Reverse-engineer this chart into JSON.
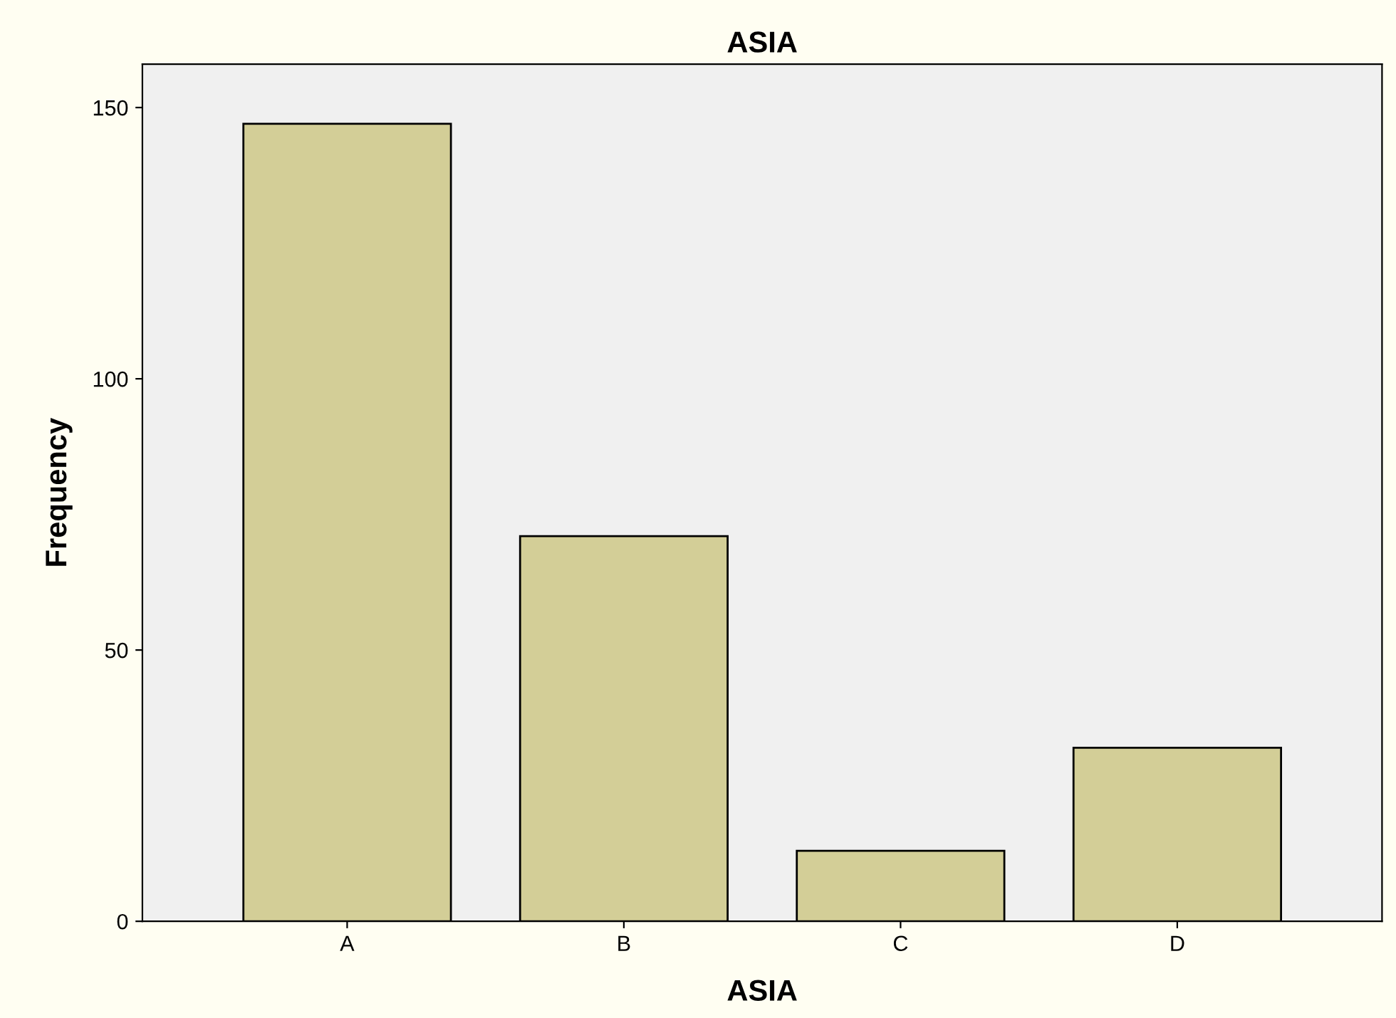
{
  "chart_data": {
    "type": "bar",
    "title": "ASIA",
    "xlabel": "ASIA",
    "ylabel": "Frequency",
    "categories": [
      "A",
      "B",
      "C",
      "D"
    ],
    "values": [
      147,
      71,
      13,
      32
    ],
    "color": "#d3ce97",
    "ylim": [
      0,
      158
    ],
    "yticks": [
      0,
      50,
      100,
      150
    ],
    "grid": false,
    "legend": false
  }
}
